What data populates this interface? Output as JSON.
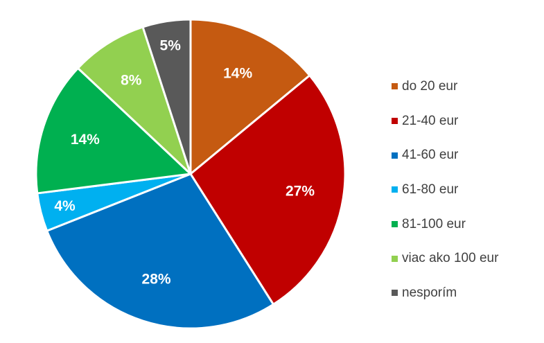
{
  "chart_data": {
    "type": "pie",
    "title": "",
    "start_angle_deg": 0,
    "direction": "clockwise",
    "slices": [
      {
        "label": "do 20 eur",
        "value": 14,
        "value_label": "14%",
        "color": "#C55A11"
      },
      {
        "label": "21-40 eur",
        "value": 27,
        "value_label": "27%",
        "color": "#C00000"
      },
      {
        "label": "41-60 eur",
        "value": 28,
        "value_label": "28%",
        "color": "#0070C0"
      },
      {
        "label": "61-80 eur",
        "value": 4,
        "value_label": "4%",
        "color": "#00B0F0"
      },
      {
        "label": "81-100 eur",
        "value": 14,
        "value_label": "14%",
        "color": "#00B050"
      },
      {
        "label": "viac ako 100 eur",
        "value": 8,
        "value_label": "8%",
        "color": "#92D050"
      },
      {
        "label": "nesporím",
        "value": 5,
        "value_label": "5%",
        "color": "#595959"
      }
    ],
    "legend_position": "right",
    "slice_border_color": "#FFFFFF",
    "label_color": "#FFFFFF"
  }
}
